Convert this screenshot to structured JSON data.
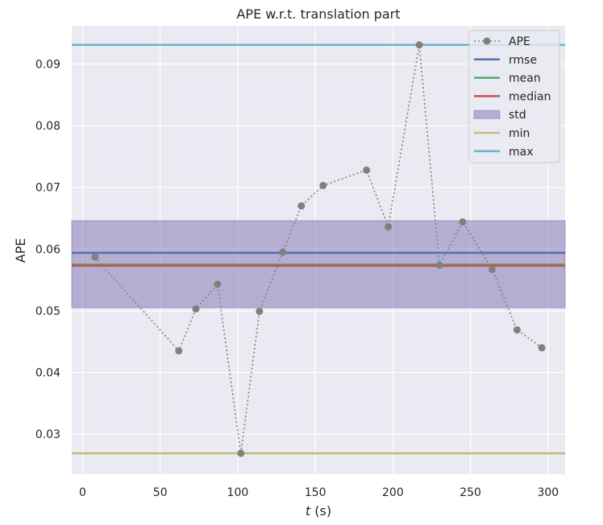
{
  "chart_data": {
    "type": "line",
    "title": "APE w.r.t. translation part",
    "xlabel_var": "t",
    "xlabel_unit": " (s)",
    "ylabel": "APE",
    "xlim": [
      -7,
      311
    ],
    "ylim": [
      0.0235,
      0.0962
    ],
    "x_ticks": [
      0,
      50,
      100,
      150,
      200,
      250,
      300
    ],
    "y_ticks": [
      0.03,
      0.04,
      0.05,
      0.06,
      0.07,
      0.08,
      0.09
    ],
    "y_tick_labels": [
      "0.03",
      "0.04",
      "0.05",
      "0.06",
      "0.07",
      "0.08",
      "0.09"
    ],
    "grid": true,
    "legend_position": "top-right",
    "series": [
      {
        "name": "APE",
        "style": "dotted-with-markers",
        "color": "#808080",
        "x": [
          8,
          62,
          73,
          87,
          102,
          114,
          129,
          141,
          155,
          183,
          197,
          217,
          230,
          245,
          264,
          280,
          296
        ],
        "y": [
          0.0587,
          0.0435,
          0.0503,
          0.0543,
          0.0269,
          0.0499,
          0.0595,
          0.067,
          0.0703,
          0.0728,
          0.0636,
          0.0931,
          0.0574,
          0.0644,
          0.0567,
          0.0469,
          0.044
        ]
      }
    ],
    "stats": [
      {
        "name": "rmse",
        "value": 0.0594,
        "color": "#4c72b0"
      },
      {
        "name": "mean",
        "value": 0.0575,
        "color": "#55a868"
      },
      {
        "name": "median",
        "value": 0.0573,
        "color": "#c44e52"
      },
      {
        "name": "std",
        "lower": 0.0505,
        "upper": 0.0646,
        "color": "#8172b2"
      },
      {
        "name": "min",
        "value": 0.0269,
        "color": "#ccb974"
      },
      {
        "name": "max",
        "value": 0.0931,
        "color": "#64b5cd"
      }
    ],
    "legend_entries": [
      {
        "label": "APE",
        "kind": "marker-line",
        "color": "#808080"
      },
      {
        "label": "rmse",
        "kind": "line",
        "color": "#4c72b0"
      },
      {
        "label": "mean",
        "kind": "line",
        "color": "#55a868"
      },
      {
        "label": "median",
        "kind": "line",
        "color": "#c44e52"
      },
      {
        "label": "std",
        "kind": "patch",
        "color": "#8172b2"
      },
      {
        "label": "min",
        "kind": "line",
        "color": "#ccb974"
      },
      {
        "label": "max",
        "kind": "line",
        "color": "#64b5cd"
      }
    ]
  }
}
